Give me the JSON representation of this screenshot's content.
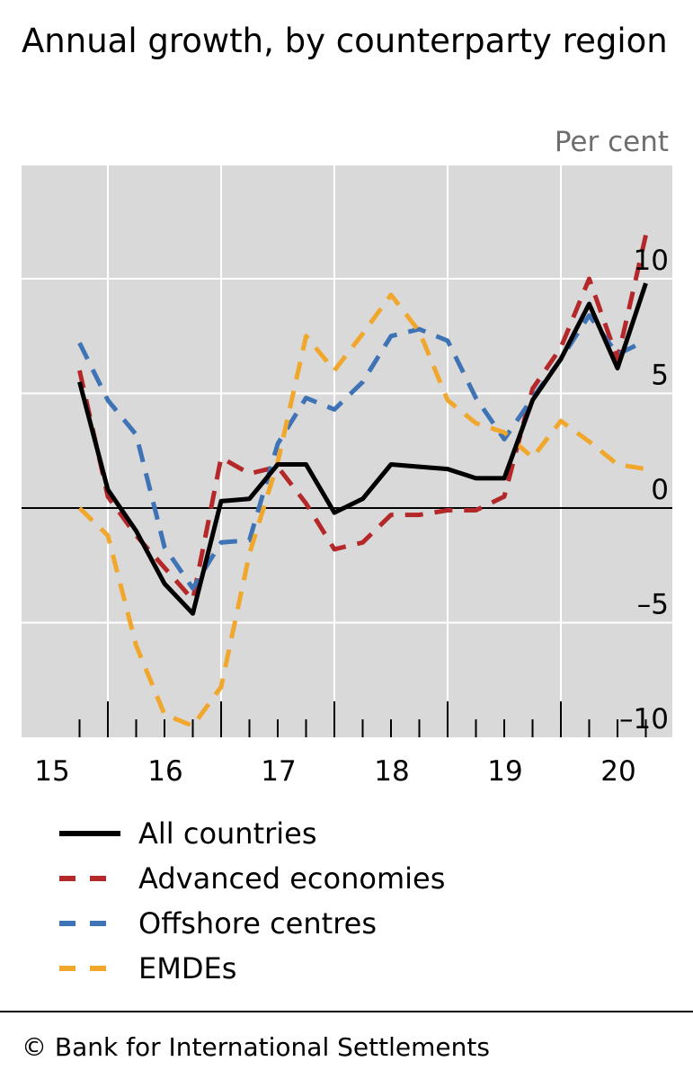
{
  "title": "Annual growth, by counterparty region",
  "unit_label": "Per cent",
  "footer": "© Bank for International Settlements",
  "chart_data": {
    "type": "line",
    "title": "Annual growth, by counterparty region",
    "ylabel": "Per cent",
    "ylim": [
      -10,
      12
    ],
    "xlim": [
      2014.75,
      2020.0
    ],
    "x_tick_labels": [
      "15",
      "16",
      "17",
      "18",
      "19",
      "20"
    ],
    "x_tick_values": [
      2015,
      2016,
      2017,
      2018,
      2019,
      2020
    ],
    "y_ticks": [
      -10,
      -5,
      0,
      5,
      10
    ],
    "y_tick_labels": [
      "–10",
      "–5",
      "0",
      "5",
      "10"
    ],
    "grid": true,
    "legend_position": "bottom",
    "x": [
      2014.75,
      2015.0,
      2015.25,
      2015.5,
      2015.75,
      2016.0,
      2016.25,
      2016.5,
      2016.75,
      2017.0,
      2017.25,
      2017.5,
      2017.75,
      2018.0,
      2018.25,
      2018.5,
      2018.75,
      2019.0,
      2019.25,
      2019.5,
      2019.75
    ],
    "series": [
      {
        "name": "All countries",
        "color": "#000000",
        "dash": "solid",
        "values": [
          5.5,
          0.8,
          -1.0,
          -3.3,
          -4.6,
          0.3,
          0.4,
          1.9,
          1.9,
          -0.2,
          0.4,
          1.9,
          1.8,
          1.7,
          1.3,
          1.3,
          4.7,
          6.5,
          8.9,
          6.1,
          9.8
        ]
      },
      {
        "name": "Advanced economies",
        "color": "#b5282a",
        "dash": "dashed",
        "values": [
          6.0,
          0.5,
          -1.2,
          -2.6,
          -4.0,
          2.2,
          1.5,
          1.8,
          0.2,
          -1.8,
          -1.5,
          -0.3,
          -0.3,
          -0.1,
          -0.1,
          0.5,
          5.2,
          7.0,
          10.0,
          6.5,
          11.9
        ]
      },
      {
        "name": "Offshore centres",
        "color": "#3e73b5",
        "dash": "dashed",
        "values": [
          7.2,
          4.7,
          3.2,
          -1.7,
          -3.5,
          -1.5,
          -1.4,
          2.8,
          4.8,
          4.3,
          5.5,
          7.5,
          7.8,
          7.3,
          4.8,
          3.0,
          4.8,
          6.5,
          8.4,
          6.7,
          7.3
        ]
      },
      {
        "name": "EMDEs",
        "color": "#f0a72b",
        "dash": "dashed",
        "values": [
          0.0,
          -1.2,
          -6.0,
          -9.0,
          -9.5,
          -7.8,
          -2.0,
          2.0,
          7.5,
          6.0,
          7.6,
          9.3,
          7.7,
          4.7,
          3.7,
          3.3,
          2.2,
          3.8,
          2.9,
          1.9,
          1.7
        ]
      }
    ]
  }
}
